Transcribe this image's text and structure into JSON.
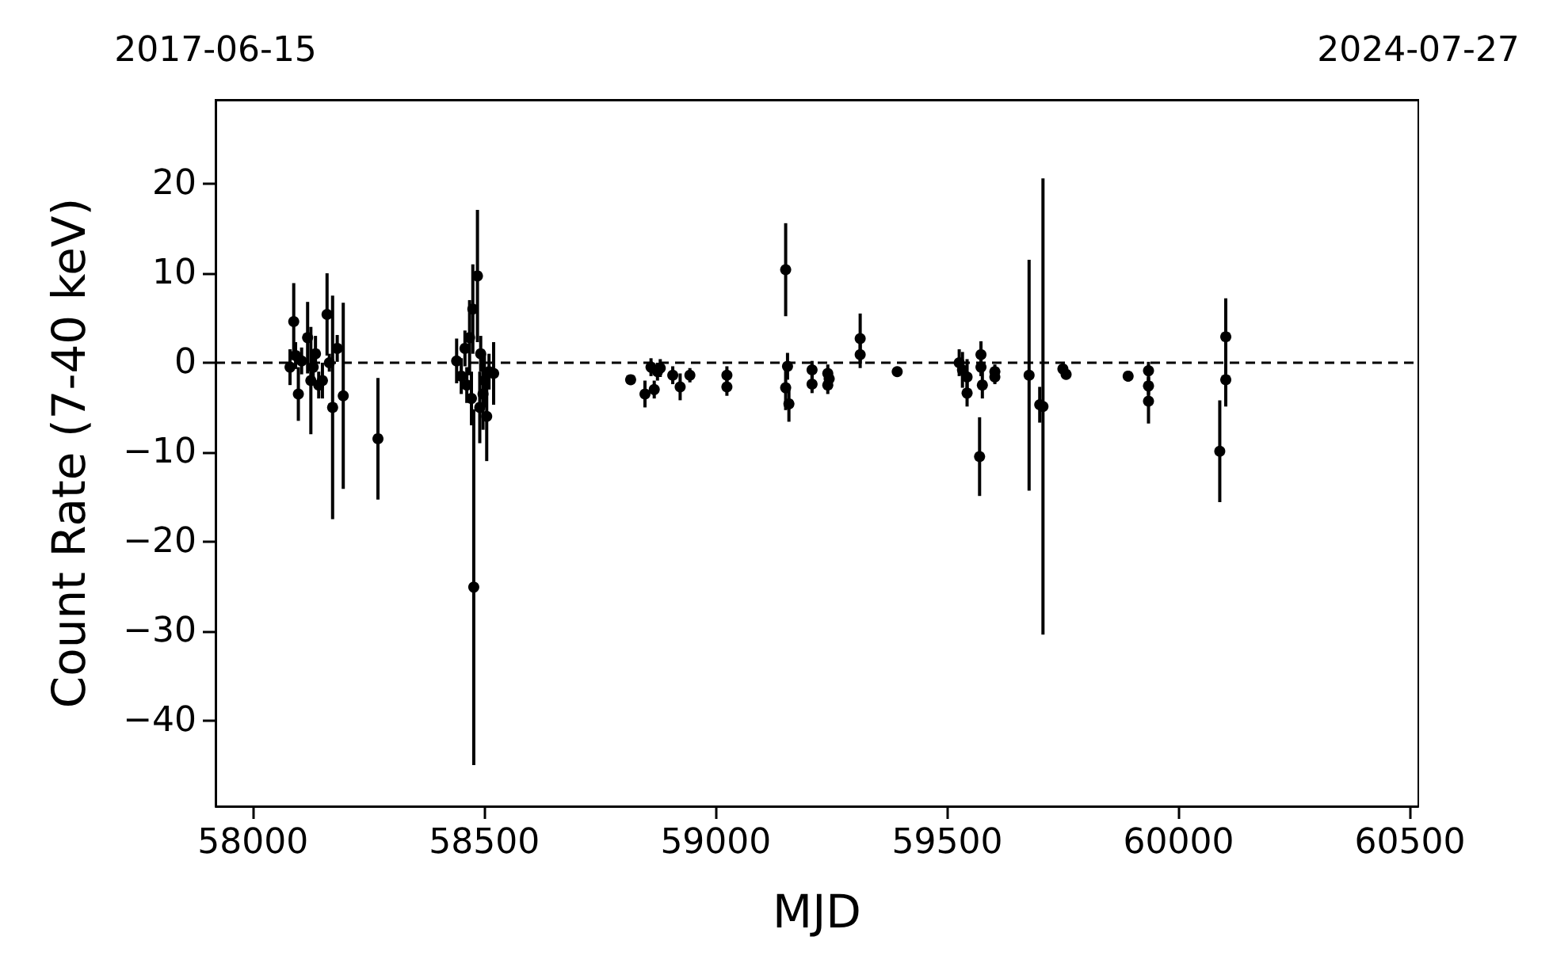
{
  "chart_data": {
    "type": "scatter",
    "xlabel": "MJD",
    "ylabel": "Count Rate (7-40 keV)",
    "x": [
      58080,
      58088,
      58092,
      58098,
      58105,
      58118,
      58125,
      58130,
      58135,
      58142,
      58150,
      58160,
      58165,
      58172,
      58182,
      58195,
      58270,
      58440,
      58450,
      58458,
      58462,
      58468,
      58472,
      58475,
      58477,
      58485,
      58490,
      58492,
      58497,
      58500,
      58505,
      58510,
      58520,
      58816,
      58847,
      58867,
      58860,
      58874,
      58880,
      58907,
      58923,
      58944,
      59024,
      59024,
      59151,
      59155,
      59151,
      59158,
      59208,
      59208,
      59242,
      59242,
      59245,
      59312,
      59312,
      59392,
      59526,
      59533,
      59543,
      59543,
      59573,
      59573,
      59576,
      59570,
      59603,
      59603,
      59677,
      59707,
      59700,
      59750,
      59757,
      59891,
      59935,
      59935,
      59935,
      60089,
      60102,
      60102
    ],
    "series": [
      {
        "color": "#000000",
        "values": [
          -0.5,
          4.6,
          0.8,
          -3.5,
          0.2,
          2.8,
          -2,
          -0.5,
          1,
          -2.5,
          -2,
          5.4,
          0,
          -5,
          1.6,
          -3.7,
          -8.5,
          0.2,
          -1.5,
          1.6,
          -2.5,
          2.8,
          -4,
          6,
          -25.1,
          9.7,
          -5,
          1,
          -3.5,
          -2,
          -6,
          -1,
          -1.2,
          -1.9,
          -3.5,
          -3,
          -0.5,
          -1,
          -0.6,
          -1.4,
          -2.7,
          -1.4,
          -1.4,
          -2.7,
          10.4,
          -0.4,
          -2.8,
          -4.6,
          -0.8,
          -2.4,
          -1.2,
          -2.5,
          -1.8,
          2.7,
          0.9,
          -1,
          0,
          -0.8,
          -1.6,
          -3.4,
          0.9,
          -0.5,
          -2.5,
          -10.5,
          -1,
          -1.6,
          -1.4,
          -4.9,
          -4.7,
          -0.7,
          -1.3,
          -1.5,
          -0.9,
          -2.6,
          -4.3,
          -9.9,
          2.9,
          -1.9
        ],
        "errors": [
          2,
          4.3,
          1.5,
          3,
          1.5,
          4,
          6,
          2,
          2,
          1.5,
          2,
          4.6,
          1,
          12.5,
          1.5,
          10.4,
          6.8,
          2.5,
          2,
          2,
          2,
          4.2,
          3,
          5,
          19.9,
          7.4,
          4,
          2,
          4,
          3,
          5,
          2,
          3.5,
          0.5,
          1.5,
          1,
          1,
          1,
          1,
          1,
          1.5,
          0.8,
          1,
          1,
          5.2,
          1.5,
          2.5,
          2,
          1,
          1,
          1,
          1,
          1,
          2.8,
          1.5,
          0.5,
          1.5,
          2,
          2,
          1.5,
          1.5,
          1,
          1.5,
          4.4,
          0.8,
          0.8,
          12.9,
          25.5,
          2,
          0.5,
          0.5,
          0.6,
          1,
          1,
          2.5,
          5.7,
          4.3,
          3
        ]
      }
    ],
    "xlim": [
      57919,
      60518
    ],
    "xticks": [
      58000,
      58500,
      59000,
      59500,
      60000,
      60500
    ],
    "x2lim": [
      "2017-06-15",
      "2024-07-27"
    ],
    "x2ticks": [
      "2017-06-15",
      "2024-07-27"
    ],
    "ylim": [
      -49.6,
      29.4
    ],
    "yticks": [
      -40,
      -30,
      -20,
      -10,
      0,
      10,
      20
    ],
    "ref_lines": [
      {
        "axis": "y",
        "value": 0,
        "color": "#000000",
        "line_style": "dashed"
      }
    ],
    "marker": "circle",
    "grid": false
  }
}
